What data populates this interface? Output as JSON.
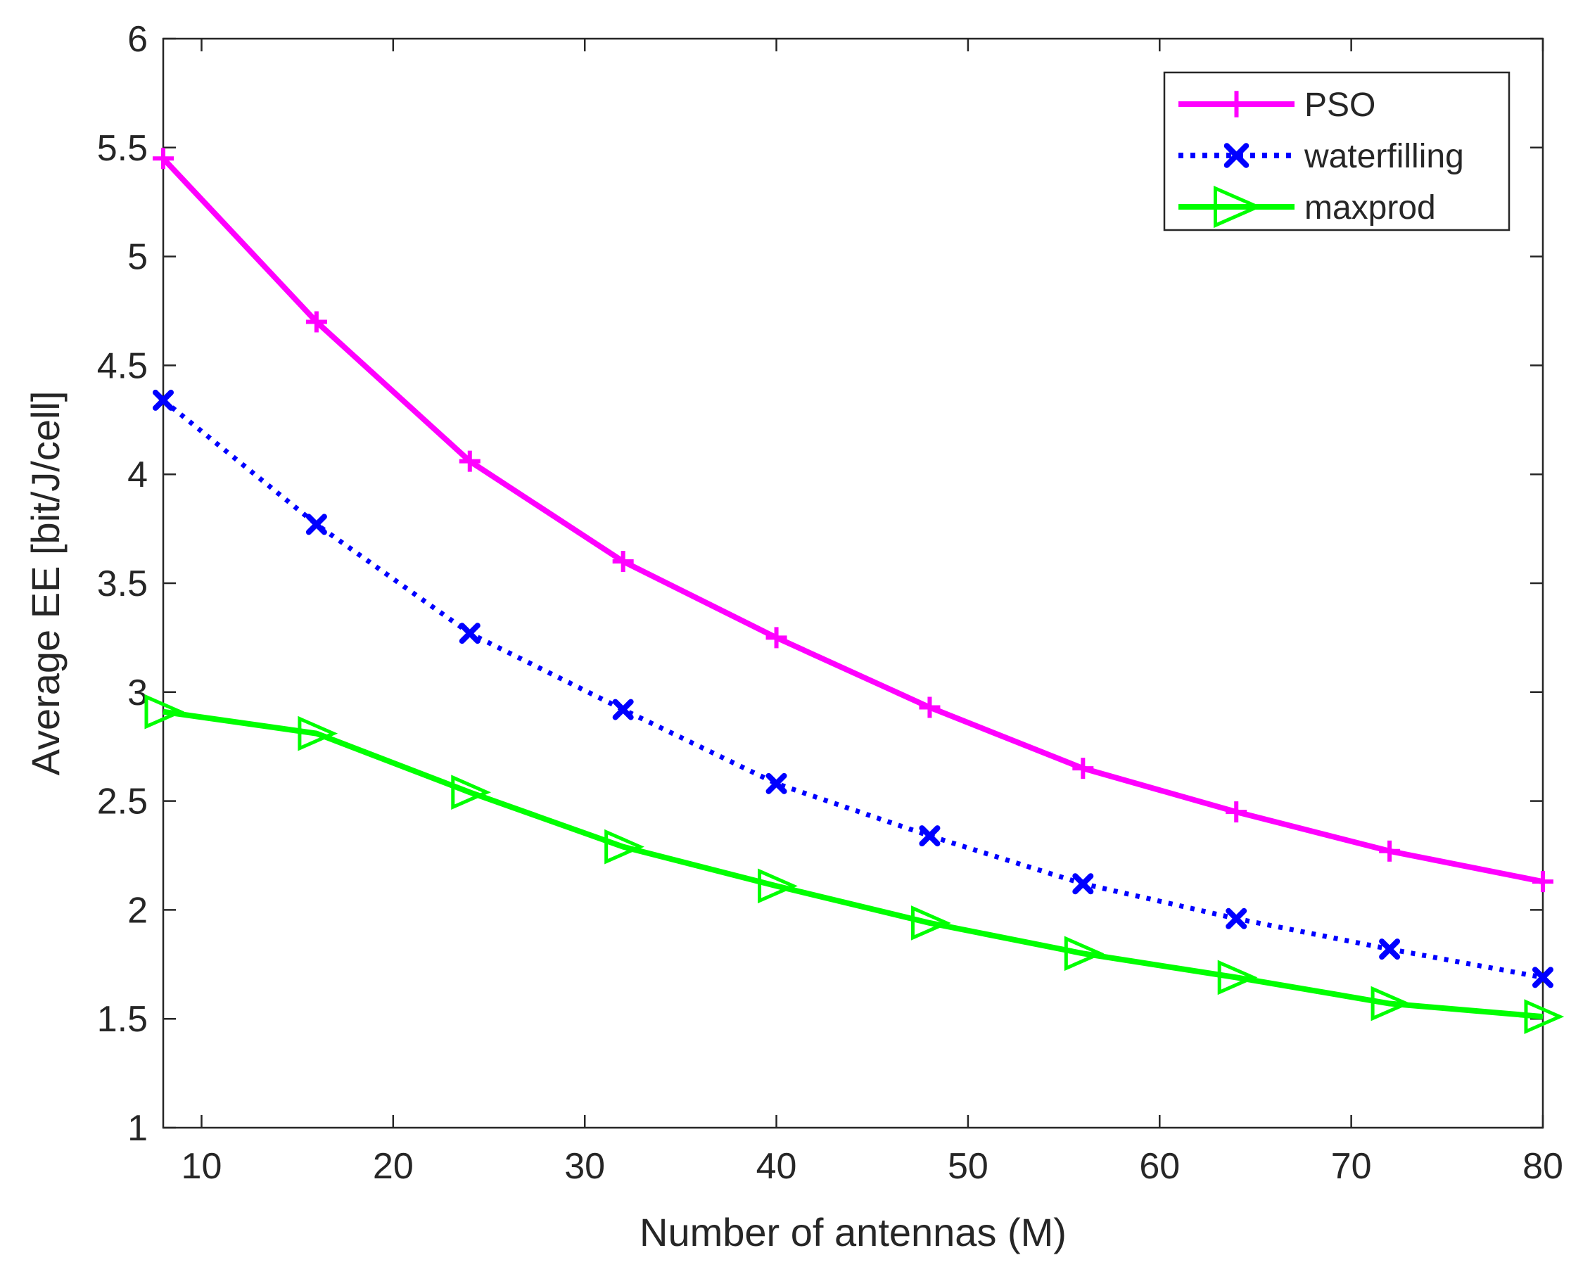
{
  "chart_data": {
    "type": "line",
    "xlabel": "Number of antennas (M)",
    "ylabel": "Average EE [bit/J/cell]",
    "xlim": [
      8,
      80
    ],
    "ylim": [
      1,
      6
    ],
    "xticks": [
      10,
      20,
      30,
      40,
      50,
      60,
      70,
      80
    ],
    "yticks": [
      1,
      1.5,
      2,
      2.5,
      3,
      3.5,
      4,
      4.5,
      5,
      5.5,
      6
    ],
    "xtick_labels": [
      "10",
      "20",
      "30",
      "40",
      "50",
      "60",
      "70",
      "80"
    ],
    "ytick_labels": [
      "1",
      "1.5",
      "2",
      "2.5",
      "3",
      "3.5",
      "4",
      "4.5",
      "5",
      "5.5",
      "6"
    ],
    "grid": false,
    "legend_position": "top-right",
    "x": [
      8,
      16,
      24,
      32,
      40,
      48,
      56,
      64,
      72,
      80
    ],
    "series": [
      {
        "name": "PSO",
        "color": "#ff00ff",
        "line_style": "solid",
        "marker": "plus",
        "values": [
          5.45,
          4.7,
          4.06,
          3.6,
          3.25,
          2.93,
          2.65,
          2.45,
          2.27,
          2.13
        ]
      },
      {
        "name": "waterfilling",
        "color": "#0000ff",
        "line_style": "dotted",
        "marker": "x",
        "values": [
          4.34,
          3.77,
          3.27,
          2.92,
          2.58,
          2.34,
          2.12,
          1.96,
          1.82,
          1.69
        ]
      },
      {
        "name": "maxprod",
        "color": "#00ff00",
        "line_style": "solid",
        "marker": "triangle-right",
        "values": [
          2.91,
          2.81,
          2.54,
          2.29,
          2.11,
          1.94,
          1.8,
          1.69,
          1.57,
          1.51
        ]
      }
    ]
  }
}
